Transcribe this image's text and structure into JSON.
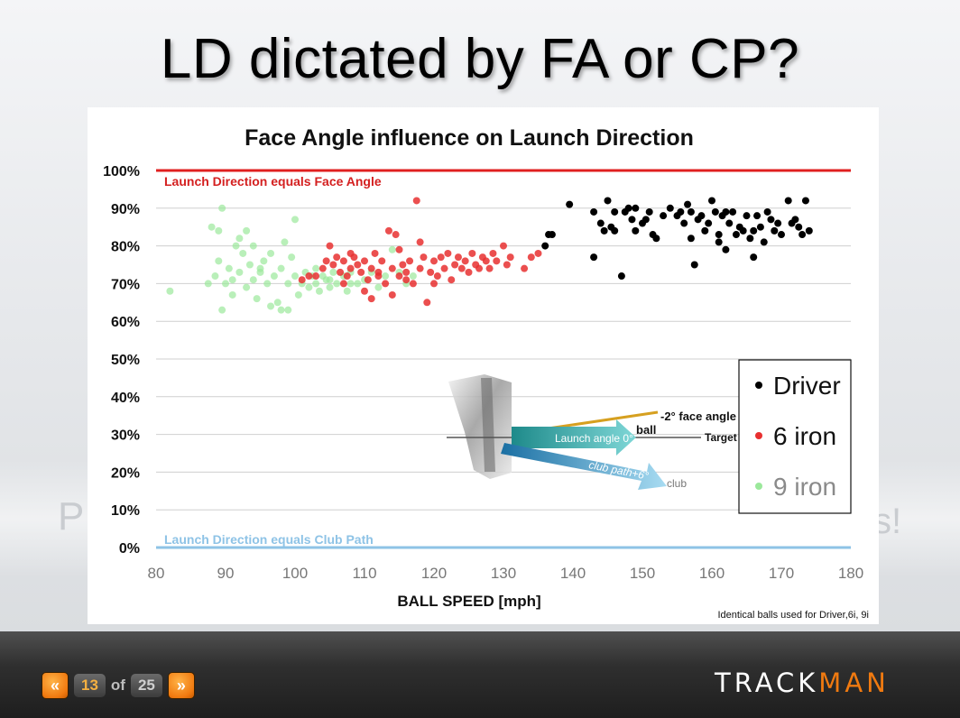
{
  "slide": {
    "title": "LD dictated by FA or CP?",
    "ghost_left": "P",
    "ghost_right": "s!"
  },
  "navigation": {
    "prev_icon": "double-chevron-left-icon",
    "current_page": "13",
    "of_label": "of",
    "total_pages": "25",
    "next_icon": "double-chevron-right-icon"
  },
  "logo": {
    "part1": "TRACK",
    "part2": "MAN",
    "accent_color": "#f07a10"
  },
  "chart_data": {
    "type": "scatter",
    "title": "Face Angle influence on Launch Direction",
    "xlabel": "BALL SPEED [mph]",
    "ylabel": "",
    "xlim": [
      80,
      180
    ],
    "ylim": [
      0,
      100
    ],
    "xticks": [
      "80",
      "90",
      "100",
      "110",
      "120",
      "130",
      "140",
      "150",
      "160",
      "170",
      "180"
    ],
    "yticks": [
      "0%",
      "10%",
      "20%",
      "30%",
      "40%",
      "50%",
      "60%",
      "70%",
      "80%",
      "90%",
      "100%"
    ],
    "reference_lines": [
      {
        "y": 100,
        "label": "Launch Direction equals Face Angle",
        "color": "#e02020"
      },
      {
        "y": 0,
        "label": "Launch Direction equals Club Path",
        "color": "#8ec3e6"
      }
    ],
    "footnote": "Identical balls used for Driver,6i, 9i",
    "legend": [
      {
        "name": "Driver",
        "color": "#000000"
      },
      {
        "name": "6 iron",
        "color": "#e83030"
      },
      {
        "name": "9 iron",
        "color": "#9be89b"
      }
    ],
    "inset": {
      "face_angle": "-2° face angle",
      "ball": "ball",
      "target": "Target",
      "launch_angle": "Launch angle 0°",
      "club_path": "club path+6°",
      "club": "club"
    },
    "series": [
      {
        "name": "Driver",
        "color": "#000000",
        "points": [
          [
            136,
            80
          ],
          [
            136.5,
            83
          ],
          [
            137,
            83
          ],
          [
            139.5,
            91
          ],
          [
            143,
            77
          ],
          [
            143,
            89
          ],
          [
            144,
            86
          ],
          [
            144.5,
            84
          ],
          [
            145,
            92
          ],
          [
            145.5,
            85
          ],
          [
            146,
            89
          ],
          [
            146,
            84
          ],
          [
            147,
            72
          ],
          [
            147.5,
            89
          ],
          [
            148,
            90
          ],
          [
            148.5,
            87
          ],
          [
            149,
            90
          ],
          [
            149,
            84
          ],
          [
            150,
            86
          ],
          [
            150.5,
            87
          ],
          [
            151,
            89
          ],
          [
            151.5,
            83
          ],
          [
            152,
            82
          ],
          [
            154,
            90
          ],
          [
            155,
            88
          ],
          [
            155.5,
            89
          ],
          [
            156,
            86
          ],
          [
            156.5,
            91
          ],
          [
            157,
            89
          ],
          [
            157,
            82
          ],
          [
            157.5,
            75
          ],
          [
            158,
            87
          ],
          [
            159,
            84
          ],
          [
            159.5,
            86
          ],
          [
            160,
            92
          ],
          [
            160.5,
            89
          ],
          [
            161,
            83
          ],
          [
            161.5,
            88
          ],
          [
            162,
            89
          ],
          [
            162,
            79
          ],
          [
            162.5,
            86
          ],
          [
            163,
            89
          ],
          [
            163.5,
            83
          ],
          [
            164,
            85
          ],
          [
            164.5,
            84
          ],
          [
            165,
            88
          ],
          [
            165.5,
            82
          ],
          [
            166,
            84
          ],
          [
            166,
            77
          ],
          [
            166.5,
            88
          ],
          [
            167,
            85
          ],
          [
            167.5,
            81
          ],
          [
            168,
            89
          ],
          [
            168.5,
            87
          ],
          [
            169,
            84
          ],
          [
            169.5,
            86
          ],
          [
            170,
            83
          ],
          [
            171,
            92
          ],
          [
            171.5,
            86
          ],
          [
            172,
            87
          ],
          [
            173,
            83
          ],
          [
            173.5,
            92
          ],
          [
            174,
            84
          ],
          [
            172.5,
            85
          ],
          [
            161,
            81
          ],
          [
            158.5,
            88
          ],
          [
            153,
            88
          ]
        ]
      },
      {
        "name": "6 iron",
        "color": "#e83030",
        "points": [
          [
            101,
            71
          ],
          [
            102,
            72
          ],
          [
            103,
            72
          ],
          [
            104,
            74
          ],
          [
            104.5,
            76
          ],
          [
            105,
            80
          ],
          [
            105.5,
            75
          ],
          [
            106,
            77
          ],
          [
            106.5,
            73
          ],
          [
            107,
            76
          ],
          [
            107.5,
            72
          ],
          [
            108,
            74
          ],
          [
            108.5,
            77
          ],
          [
            109,
            75
          ],
          [
            109.5,
            73
          ],
          [
            110,
            76
          ],
          [
            110.5,
            71
          ],
          [
            111,
            74
          ],
          [
            111.5,
            78
          ],
          [
            112,
            73
          ],
          [
            112.5,
            76
          ],
          [
            113,
            70
          ],
          [
            113.5,
            84
          ],
          [
            114,
            74
          ],
          [
            114.5,
            83
          ],
          [
            115,
            72
          ],
          [
            115.5,
            75
          ],
          [
            116,
            73
          ],
          [
            116.5,
            76
          ],
          [
            117,
            70
          ],
          [
            117.5,
            92
          ],
          [
            118,
            74
          ],
          [
            118.5,
            77
          ],
          [
            119,
            65
          ],
          [
            119.5,
            73
          ],
          [
            120,
            76
          ],
          [
            120.5,
            72
          ],
          [
            121,
            77
          ],
          [
            121.5,
            74
          ],
          [
            122,
            78
          ],
          [
            122.5,
            71
          ],
          [
            123,
            75
          ],
          [
            123.5,
            77
          ],
          [
            124,
            74
          ],
          [
            124.5,
            76
          ],
          [
            125,
            73
          ],
          [
            125.5,
            78
          ],
          [
            126,
            75
          ],
          [
            126.5,
            74
          ],
          [
            127,
            77
          ],
          [
            127.5,
            76
          ],
          [
            128,
            74
          ],
          [
            128.5,
            78
          ],
          [
            129,
            76
          ],
          [
            130,
            80
          ],
          [
            130.5,
            75
          ],
          [
            131,
            77
          ],
          [
            133,
            74
          ],
          [
            134,
            77
          ],
          [
            135,
            78
          ],
          [
            110,
            68
          ],
          [
            112,
            72
          ],
          [
            115,
            79
          ],
          [
            118,
            81
          ],
          [
            108,
            78
          ],
          [
            111,
            66
          ],
          [
            114,
            67
          ],
          [
            116,
            71
          ],
          [
            120,
            70
          ],
          [
            107,
            70
          ]
        ]
      },
      {
        "name": "9 iron",
        "color": "#9be89b",
        "points": [
          [
            82,
            68
          ],
          [
            87.5,
            70
          ],
          [
            88,
            85
          ],
          [
            88.5,
            72
          ],
          [
            89,
            76
          ],
          [
            89,
            84
          ],
          [
            89.5,
            90
          ],
          [
            89.5,
            63
          ],
          [
            90,
            70
          ],
          [
            90.5,
            74
          ],
          [
            91,
            67
          ],
          [
            91.5,
            80
          ],
          [
            92,
            73
          ],
          [
            92.5,
            78
          ],
          [
            93,
            84
          ],
          [
            93,
            69
          ],
          [
            93.5,
            75
          ],
          [
            94,
            71
          ],
          [
            94,
            80
          ],
          [
            94.5,
            66
          ],
          [
            95,
            73
          ],
          [
            95.5,
            76
          ],
          [
            96,
            70
          ],
          [
            96.5,
            78
          ],
          [
            97,
            72
          ],
          [
            97.5,
            65
          ],
          [
            98,
            74
          ],
          [
            98.5,
            81
          ],
          [
            99,
            70
          ],
          [
            99,
            63
          ],
          [
            99.5,
            77
          ],
          [
            100,
            87
          ],
          [
            100,
            72
          ],
          [
            100.5,
            67
          ],
          [
            101,
            70
          ],
          [
            101.5,
            73
          ],
          [
            102,
            69
          ],
          [
            102.5,
            72
          ],
          [
            103,
            70
          ],
          [
            103.5,
            68
          ],
          [
            104,
            72
          ],
          [
            104.5,
            71
          ],
          [
            105,
            69
          ],
          [
            105.5,
            73
          ],
          [
            106,
            70
          ],
          [
            107,
            72
          ],
          [
            107.5,
            68
          ],
          [
            108,
            73
          ],
          [
            109,
            70
          ],
          [
            110,
            71
          ],
          [
            111,
            73
          ],
          [
            112,
            69
          ],
          [
            113,
            72
          ],
          [
            114,
            79
          ],
          [
            115,
            73
          ],
          [
            116,
            70
          ],
          [
            117,
            72
          ],
          [
            96.5,
            64
          ],
          [
            98,
            63
          ],
          [
            92,
            82
          ],
          [
            95,
            74
          ],
          [
            91,
            71
          ],
          [
            103,
            74
          ],
          [
            105,
            71
          ],
          [
            108,
            70
          ]
        ]
      }
    ]
  }
}
